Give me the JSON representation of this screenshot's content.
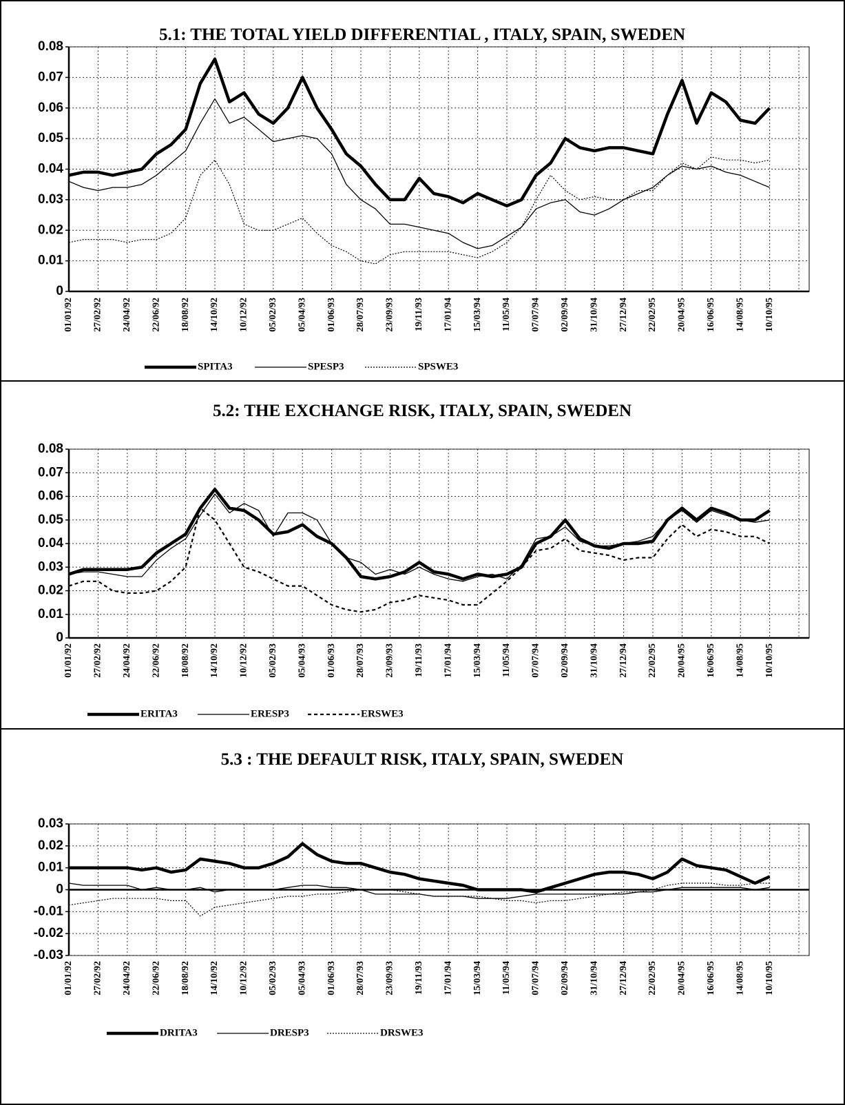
{
  "chart_data": [
    {
      "type": "line",
      "title": "5.1: THE TOTAL YIELD DIFFERENTIAL , ITALY, SPAIN, SWEDEN",
      "categories": [
        "01/01/92",
        null,
        "27/02/92",
        null,
        "24/04/92",
        null,
        "22/06/92",
        null,
        "18/08/92",
        null,
        "14/10/92",
        null,
        "10/12/92",
        null,
        "05/02/93",
        null,
        "05/04/93",
        null,
        "01/06/93",
        null,
        "28/07/93",
        null,
        "23/09/93",
        null,
        "19/11/93",
        null,
        "17/01/94",
        null,
        "15/03/94",
        null,
        "11/05/94",
        null,
        "07/07/94",
        null,
        "02/09/94",
        null,
        "31/10/94",
        null,
        "27/12/94",
        null,
        "22/02/95",
        null,
        "20/04/95",
        null,
        "16/06/95",
        null,
        "14/08/95",
        null,
        "10/10/95"
      ],
      "ylim": [
        0,
        0.08
      ],
      "yticks": [
        0,
        0.01,
        0.02,
        0.03,
        0.04,
        0.05,
        0.06,
        0.07,
        0.08
      ],
      "grid": true,
      "series": [
        {
          "name": "SPITA3",
          "color": "#000000",
          "style": "thick",
          "values": [
            0.038,
            0.039,
            0.039,
            0.038,
            0.039,
            0.04,
            0.045,
            0.048,
            0.053,
            0.068,
            0.076,
            0.062,
            0.065,
            0.058,
            0.055,
            0.06,
            0.07,
            0.06,
            0.053,
            0.045,
            0.041,
            0.035,
            0.03,
            0.03,
            0.037,
            0.032,
            0.031,
            0.029,
            0.032,
            0.03,
            0.028,
            0.03,
            0.038,
            0.042,
            0.05,
            0.047,
            0.046,
            0.047,
            0.047,
            0.046,
            0.045,
            0.058,
            0.069,
            0.055,
            0.065,
            0.062,
            0.056,
            0.055,
            0.06
          ]
        },
        {
          "name": "SPESP3",
          "color": "#000000",
          "style": "thin",
          "values": [
            0.036,
            0.034,
            0.033,
            0.034,
            0.034,
            0.035,
            0.038,
            0.042,
            0.046,
            0.055,
            0.063,
            0.055,
            0.057,
            0.053,
            0.049,
            0.05,
            0.051,
            0.05,
            0.045,
            0.035,
            0.03,
            0.027,
            0.022,
            0.022,
            0.021,
            0.02,
            0.019,
            0.016,
            0.014,
            0.015,
            0.018,
            0.021,
            0.027,
            0.029,
            0.03,
            0.026,
            0.025,
            0.027,
            0.03,
            0.032,
            0.034,
            0.038,
            0.041,
            0.04,
            0.041,
            0.039,
            0.038,
            0.036,
            0.034
          ]
        },
        {
          "name": "SPSWE3",
          "color": "#000000",
          "style": "dotted",
          "values": [
            0.016,
            0.017,
            0.017,
            0.017,
            0.016,
            0.017,
            0.017,
            0.019,
            0.024,
            0.038,
            0.043,
            0.035,
            0.022,
            0.02,
            0.02,
            0.022,
            0.024,
            0.019,
            0.015,
            0.013,
            0.01,
            0.009,
            0.012,
            0.013,
            0.013,
            0.013,
            0.013,
            0.012,
            0.011,
            0.013,
            0.016,
            0.021,
            0.03,
            0.038,
            0.033,
            0.03,
            0.031,
            0.03,
            0.03,
            0.033,
            0.033,
            0.038,
            0.042,
            0.04,
            0.044,
            0.043,
            0.043,
            0.042,
            0.043
          ]
        }
      ]
    },
    {
      "type": "line",
      "title": "5.2: THE EXCHANGE RISK, ITALY, SPAIN,  SWEDEN",
      "categories": [
        "01/01/92",
        null,
        "27/02/92",
        null,
        "24/04/92",
        null,
        "22/06/92",
        null,
        "18/08/92",
        null,
        "14/10/92",
        null,
        "10/12/92",
        null,
        "05/02/93",
        null,
        "05/04/93",
        null,
        "01/06/93",
        null,
        "28/07/93",
        null,
        "23/09/93",
        null,
        "19/11/93",
        null,
        "17/01/94",
        null,
        "15/03/94",
        null,
        "11/05/94",
        null,
        "07/07/94",
        null,
        "02/09/94",
        null,
        "31/10/94",
        null,
        "27/12/94",
        null,
        "22/02/95",
        null,
        "20/04/95",
        null,
        "16/06/95",
        null,
        "14/08/95",
        null,
        "10/10/95"
      ],
      "ylim": [
        0,
        0.08
      ],
      "yticks": [
        0,
        0.01,
        0.02,
        0.03,
        0.04,
        0.05,
        0.06,
        0.07,
        0.08
      ],
      "grid": true,
      "series": [
        {
          "name": "ERITA3",
          "color": "#000000",
          "style": "thick",
          "values": [
            0.027,
            0.029,
            0.029,
            0.029,
            0.029,
            0.03,
            0.036,
            0.04,
            0.044,
            0.055,
            0.063,
            0.055,
            0.054,
            0.05,
            0.044,
            0.045,
            0.048,
            0.043,
            0.04,
            0.034,
            0.026,
            0.025,
            0.026,
            0.028,
            0.032,
            0.028,
            0.027,
            0.025,
            0.027,
            0.026,
            0.027,
            0.03,
            0.04,
            0.043,
            0.05,
            0.042,
            0.039,
            0.038,
            0.04,
            0.04,
            0.041,
            0.05,
            0.055,
            0.05,
            0.055,
            0.053,
            0.05,
            0.05,
            0.054
          ]
        },
        {
          "name": "ERESP3",
          "color": "#000000",
          "style": "thin",
          "values": [
            0.027,
            0.028,
            0.028,
            0.027,
            0.026,
            0.026,
            0.033,
            0.038,
            0.042,
            0.052,
            0.061,
            0.053,
            0.057,
            0.054,
            0.043,
            0.053,
            0.053,
            0.05,
            0.04,
            0.034,
            0.032,
            0.027,
            0.029,
            0.027,
            0.03,
            0.027,
            0.025,
            0.024,
            0.026,
            0.027,
            0.025,
            0.031,
            0.042,
            0.043,
            0.047,
            0.041,
            0.039,
            0.039,
            0.04,
            0.041,
            0.043,
            0.05,
            0.054,
            0.049,
            0.054,
            0.052,
            0.05,
            0.049,
            0.05
          ]
        },
        {
          "name": "ERSWE3",
          "color": "#000000",
          "style": "dashed",
          "values": [
            0.022,
            0.024,
            0.024,
            0.02,
            0.019,
            0.019,
            0.02,
            0.024,
            0.03,
            0.055,
            0.05,
            0.04,
            0.03,
            0.028,
            0.025,
            0.022,
            0.022,
            0.018,
            0.014,
            0.012,
            0.011,
            0.012,
            0.015,
            0.016,
            0.018,
            0.017,
            0.016,
            0.014,
            0.014,
            0.019,
            0.024,
            0.03,
            0.037,
            0.038,
            0.042,
            0.037,
            0.036,
            0.035,
            0.033,
            0.034,
            0.034,
            0.042,
            0.048,
            0.043,
            0.046,
            0.045,
            0.043,
            0.043,
            0.04
          ]
        }
      ]
    },
    {
      "type": "line",
      "title": "5.3 : THE DEFAULT RISK, ITALY, SPAIN, SWEDEN",
      "categories": [
        "01/01/92",
        null,
        "27/02/92",
        null,
        "24/04/92",
        null,
        "22/06/92",
        null,
        "18/08/92",
        null,
        "14/10/92",
        null,
        "10/12/92",
        null,
        "05/02/93",
        null,
        "05/04/93",
        null,
        "01/06/93",
        null,
        "28/07/93",
        null,
        "23/09/93",
        null,
        "19/11/93",
        null,
        "17/01/94",
        null,
        "15/03/94",
        null,
        "11/05/94",
        null,
        "07/07/94",
        null,
        "02/09/94",
        null,
        "31/10/94",
        null,
        "27/12/94",
        null,
        "22/02/95",
        null,
        "20/04/95",
        null,
        "16/06/95",
        null,
        "14/08/95",
        null,
        "10/10/95"
      ],
      "ylim": [
        -0.03,
        0.03
      ],
      "yticks": [
        -0.03,
        -0.02,
        -0.01,
        0,
        0.01,
        0.02,
        0.03
      ],
      "grid": true,
      "series": [
        {
          "name": "DRITA3",
          "color": "#000000",
          "style": "thick",
          "values": [
            0.01,
            0.01,
            0.01,
            0.01,
            0.01,
            0.009,
            0.01,
            0.008,
            0.009,
            0.014,
            0.013,
            0.012,
            0.01,
            0.01,
            0.012,
            0.015,
            0.021,
            0.016,
            0.013,
            0.012,
            0.012,
            0.01,
            0.008,
            0.007,
            0.005,
            0.004,
            0.003,
            0.002,
            0.0,
            0.0,
            0.0,
            0.0,
            -0.001,
            0.001,
            0.003,
            0.005,
            0.007,
            0.008,
            0.008,
            0.007,
            0.005,
            0.008,
            0.014,
            0.011,
            0.01,
            0.009,
            0.006,
            0.003,
            0.006
          ]
        },
        {
          "name": "DRESP3",
          "color": "#000000",
          "style": "thin",
          "values": [
            0.003,
            0.002,
            0.002,
            0.002,
            0.002,
            0.0,
            0.001,
            0.0,
            0.0,
            0.001,
            -0.001,
            0,
            0,
            0,
            0,
            0.001,
            0.002,
            0.002,
            0.001,
            0.001,
            0,
            -0.002,
            -0.002,
            -0.002,
            -0.002,
            -0.003,
            -0.003,
            -0.003,
            -0.004,
            -0.004,
            -0.004,
            -0.003,
            -0.002,
            -0.002,
            -0.002,
            -0.002,
            -0.002,
            -0.002,
            -0.002,
            -0.001,
            -0.001,
            0,
            0.001,
            0.001,
            0.001,
            0.001,
            0.001,
            0,
            0.001
          ]
        },
        {
          "name": "DRSWE3",
          "color": "#000000",
          "style": "dotted",
          "values": [
            -0.007,
            -0.006,
            -0.005,
            -0.004,
            -0.004,
            -0.004,
            -0.004,
            -0.005,
            -0.005,
            -0.012,
            -0.008,
            -0.007,
            -0.006,
            -0.005,
            -0.004,
            -0.003,
            -0.003,
            -0.002,
            -0.002,
            -0.001,
            0,
            0,
            0,
            -0.001,
            -0.002,
            -0.003,
            -0.003,
            -0.003,
            -0.003,
            -0.004,
            -0.005,
            -0.005,
            -0.006,
            -0.005,
            -0.005,
            -0.004,
            -0.003,
            -0.002,
            -0.001,
            -0.001,
            0,
            0.002,
            0.003,
            0.003,
            0.003,
            0.002,
            0.002,
            0.003,
            0.003
          ]
        }
      ]
    }
  ]
}
